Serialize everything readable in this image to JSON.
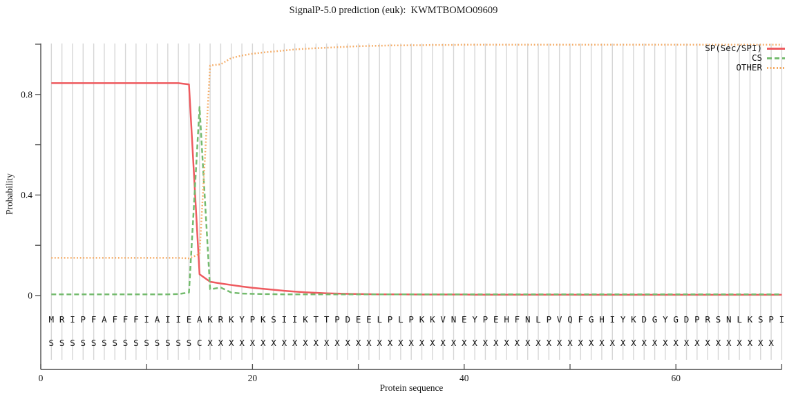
{
  "title": "SignalP-5.0 prediction (euk):  KWMTBOMO09609",
  "colors": {
    "sp_line": "#ee5a5f",
    "cs_line": "#74bb6e",
    "other_line": "#f5ac66",
    "gridline": "#d6d6d6",
    "axis": "#4d4d4d",
    "text": "#1a1a1a"
  },
  "legend": [
    {
      "label": "SP(Sec/SPI)",
      "color": "#ee5a5f",
      "style": "solid"
    },
    {
      "label": "CS",
      "color": "#74bb6e",
      "style": "dashed"
    },
    {
      "label": "OTHER",
      "color": "#f5ac66",
      "style": "dotted"
    }
  ],
  "chart_data": {
    "type": "line",
    "title": "SignalP-5.0 prediction (euk):  KWMTBOMO09609",
    "xlabel": "Protein sequence",
    "ylabel": "Probability",
    "xlim": [
      0,
      70.2
    ],
    "ylim": [
      0,
      1.0
    ],
    "grid": "vertical gridline at every residue position 1-70",
    "legend_position": "upper right",
    "xticks": {
      "labeled": [
        0,
        20,
        40,
        60
      ],
      "minor": [
        10,
        30,
        50,
        70
      ]
    },
    "yticks": {
      "labeled": [
        0,
        0.4,
        0.8
      ],
      "minor": [
        0.2,
        0.6,
        1.0
      ]
    },
    "x_start": 1,
    "sequence": "MRIPFAFFFIAIIEAKRKYPKSIIKTTPDEELPLPKKVNEYPEHFNLPVQFGHIYKDGYGDPRSNLKSPI",
    "annotation": "SSSSSSSSSSSSSSCXXXXXXXXXXXXXXXXXXXXXXXXXXXXXXXXXXXXXXXXXXXXXXXXXXXXXX",
    "series": [
      {
        "name": "SP(Sec/SPI)",
        "color": "#ee5a5f",
        "dash": "solid",
        "values": [
          0.845,
          0.845,
          0.845,
          0.845,
          0.845,
          0.845,
          0.845,
          0.845,
          0.845,
          0.845,
          0.845,
          0.845,
          0.845,
          0.84,
          0.085,
          0.055,
          0.048,
          0.042,
          0.036,
          0.031,
          0.027,
          0.023,
          0.019,
          0.016,
          0.013,
          0.011,
          0.009,
          0.008,
          0.007,
          0.006,
          0.0055,
          0.005,
          0.0048,
          0.0046,
          0.0044,
          0.0042,
          0.004,
          0.004,
          0.004,
          0.004,
          0.0035,
          0.0035,
          0.0035,
          0.0035,
          0.0035,
          0.0035,
          0.0035,
          0.0035,
          0.0035,
          0.0035,
          0.003,
          0.003,
          0.003,
          0.003,
          0.003,
          0.003,
          0.003,
          0.003,
          0.003,
          0.003,
          0.003,
          0.003,
          0.003,
          0.003,
          0.003,
          0.003,
          0.003,
          0.003,
          0.003,
          0.003
        ]
      },
      {
        "name": "CS",
        "color": "#74bb6e",
        "dash": "dashed",
        "values": [
          0.005,
          0.005,
          0.005,
          0.005,
          0.005,
          0.005,
          0.005,
          0.005,
          0.005,
          0.005,
          0.005,
          0.005,
          0.006,
          0.012,
          0.75,
          0.025,
          0.032,
          0.012,
          0.008,
          0.007,
          0.006,
          0.0055,
          0.005,
          0.005,
          0.005,
          0.005,
          0.005,
          0.005,
          0.005,
          0.005,
          0.005,
          0.005,
          0.005,
          0.005,
          0.005,
          0.005,
          0.005,
          0.005,
          0.005,
          0.005,
          0.005,
          0.005,
          0.005,
          0.005,
          0.005,
          0.005,
          0.005,
          0.005,
          0.005,
          0.005,
          0.005,
          0.005,
          0.005,
          0.005,
          0.005,
          0.005,
          0.005,
          0.005,
          0.005,
          0.005,
          0.005,
          0.005,
          0.005,
          0.005,
          0.005,
          0.005,
          0.005,
          0.005,
          0.005,
          0.005
        ]
      },
      {
        "name": "OTHER",
        "color": "#f5ac66",
        "dash": "dotted",
        "values": [
          0.15,
          0.15,
          0.15,
          0.15,
          0.15,
          0.15,
          0.15,
          0.15,
          0.15,
          0.15,
          0.15,
          0.15,
          0.15,
          0.148,
          0.165,
          0.915,
          0.92,
          0.945,
          0.955,
          0.962,
          0.967,
          0.971,
          0.975,
          0.979,
          0.982,
          0.984,
          0.986,
          0.988,
          0.99,
          0.992,
          0.993,
          0.994,
          0.995,
          0.995,
          0.996,
          0.996,
          0.997,
          0.997,
          0.997,
          0.998,
          0.998,
          0.998,
          0.998,
          0.998,
          0.998,
          0.998,
          0.998,
          0.998,
          0.998,
          0.998,
          0.998,
          0.998,
          0.998,
          0.998,
          0.998,
          0.998,
          0.998,
          0.998,
          0.998,
          0.998,
          0.998,
          0.998,
          0.998,
          0.998,
          0.998,
          0.998,
          0.998,
          0.998,
          0.998,
          0.998
        ]
      }
    ]
  }
}
